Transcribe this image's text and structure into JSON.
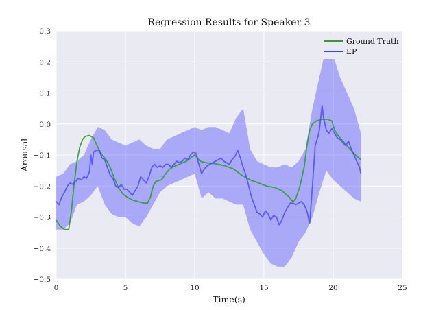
{
  "chart_data": {
    "type": "line",
    "title": "Regression Results for Speaker 3",
    "xlabel": "Time(s)",
    "ylabel": "Arousal",
    "xlim": [
      0,
      25
    ],
    "ylim": [
      -0.5,
      0.3
    ],
    "xticks": [
      0,
      5,
      10,
      15,
      20,
      25
    ],
    "xtick_labels": [
      "0",
      "5",
      "10",
      "15",
      "20",
      "25"
    ],
    "yticks": [
      -0.5,
      -0.4,
      -0.3,
      -0.2,
      -0.1,
      0.0,
      0.1,
      0.2,
      0.3
    ],
    "ytick_labels": [
      "−0.5",
      "−0.4",
      "−0.3",
      "−0.2",
      "−0.1",
      "0.0",
      "0.1",
      "0.2",
      "0.3"
    ],
    "grid": true,
    "legend_position": "top-right",
    "series": [
      {
        "name": "Ground Truth",
        "color": "#2ca02c",
        "points": [
          [
            0,
            -0.31
          ],
          [
            0.3,
            -0.33
          ],
          [
            0.6,
            -0.34
          ],
          [
            0.9,
            -0.34
          ],
          [
            1.1,
            -0.28
          ],
          [
            1.3,
            -0.19
          ],
          [
            1.5,
            -0.12
          ],
          [
            1.7,
            -0.075
          ],
          [
            1.9,
            -0.05
          ],
          [
            2.1,
            -0.04
          ],
          [
            2.4,
            -0.037
          ],
          [
            2.7,
            -0.045
          ],
          [
            3.0,
            -0.075
          ],
          [
            3.3,
            -0.1
          ],
          [
            3.6,
            -0.115
          ],
          [
            3.9,
            -0.14
          ],
          [
            4.2,
            -0.175
          ],
          [
            4.5,
            -0.205
          ],
          [
            4.8,
            -0.225
          ],
          [
            5.1,
            -0.235
          ],
          [
            5.5,
            -0.245
          ],
          [
            5.9,
            -0.25
          ],
          [
            6.3,
            -0.255
          ],
          [
            6.6,
            -0.255
          ],
          [
            6.8,
            -0.235
          ],
          [
            7.0,
            -0.2
          ],
          [
            7.2,
            -0.185
          ],
          [
            7.6,
            -0.18
          ],
          [
            7.9,
            -0.16
          ],
          [
            8.2,
            -0.145
          ],
          [
            8.6,
            -0.135
          ],
          [
            9.0,
            -0.128
          ],
          [
            9.4,
            -0.12
          ],
          [
            9.7,
            -0.11
          ],
          [
            10.0,
            -0.1
          ],
          [
            10.2,
            -0.11
          ],
          [
            10.4,
            -0.12
          ],
          [
            10.8,
            -0.125
          ],
          [
            11.5,
            -0.128
          ],
          [
            12.2,
            -0.135
          ],
          [
            12.8,
            -0.145
          ],
          [
            13.4,
            -0.165
          ],
          [
            14.0,
            -0.18
          ],
          [
            14.6,
            -0.19
          ],
          [
            15.2,
            -0.2
          ],
          [
            15.8,
            -0.205
          ],
          [
            16.3,
            -0.215
          ],
          [
            16.8,
            -0.235
          ],
          [
            17.1,
            -0.25
          ],
          [
            17.3,
            -0.24
          ],
          [
            17.6,
            -0.2
          ],
          [
            17.9,
            -0.14
          ],
          [
            18.1,
            -0.07
          ],
          [
            18.3,
            -0.02
          ],
          [
            18.5,
            0.0
          ],
          [
            18.8,
            0.01
          ],
          [
            19.2,
            0.015
          ],
          [
            19.6,
            0.015
          ],
          [
            19.9,
            0.01
          ],
          [
            20.1,
            -0.02
          ],
          [
            20.4,
            -0.04
          ],
          [
            20.8,
            -0.06
          ],
          [
            21.2,
            -0.08
          ],
          [
            21.6,
            -0.1
          ],
          [
            22.0,
            -0.115
          ]
        ]
      },
      {
        "name": "EP",
        "color": "#4040ff",
        "points": [
          [
            0,
            -0.25
          ],
          [
            0.2,
            -0.26
          ],
          [
            0.4,
            -0.235
          ],
          [
            0.6,
            -0.22
          ],
          [
            0.8,
            -0.2
          ],
          [
            1.0,
            -0.19
          ],
          [
            1.2,
            -0.195
          ],
          [
            1.4,
            -0.185
          ],
          [
            1.6,
            -0.175
          ],
          [
            1.8,
            -0.18
          ],
          [
            2.0,
            -0.17
          ],
          [
            2.2,
            -0.175
          ],
          [
            2.4,
            -0.155
          ],
          [
            2.5,
            -0.1
          ],
          [
            2.6,
            -0.13
          ],
          [
            2.7,
            -0.09
          ],
          [
            2.9,
            -0.085
          ],
          [
            3.1,
            -0.085
          ],
          [
            3.3,
            -0.11
          ],
          [
            3.5,
            -0.115
          ],
          [
            3.7,
            -0.14
          ],
          [
            3.9,
            -0.165
          ],
          [
            4.1,
            -0.175
          ],
          [
            4.3,
            -0.2
          ],
          [
            4.5,
            -0.205
          ],
          [
            4.7,
            -0.195
          ],
          [
            4.9,
            -0.21
          ],
          [
            5.1,
            -0.21
          ],
          [
            5.3,
            -0.22
          ],
          [
            5.5,
            -0.23
          ],
          [
            5.7,
            -0.215
          ],
          [
            5.9,
            -0.2
          ],
          [
            6.1,
            -0.17
          ],
          [
            6.3,
            -0.18
          ],
          [
            6.5,
            -0.19
          ],
          [
            6.7,
            -0.17
          ],
          [
            6.9,
            -0.14
          ],
          [
            7.1,
            -0.13
          ],
          [
            7.3,
            -0.14
          ],
          [
            7.5,
            -0.135
          ],
          [
            7.7,
            -0.14
          ],
          [
            7.9,
            -0.13
          ],
          [
            8.1,
            -0.13
          ],
          [
            8.3,
            -0.14
          ],
          [
            8.5,
            -0.13
          ],
          [
            8.7,
            -0.12
          ],
          [
            8.9,
            -0.125
          ],
          [
            9.1,
            -0.12
          ],
          [
            9.3,
            -0.11
          ],
          [
            9.5,
            -0.115
          ],
          [
            9.7,
            -0.1
          ],
          [
            9.9,
            -0.09
          ],
          [
            10.1,
            -0.095
          ],
          [
            10.3,
            -0.13
          ],
          [
            10.5,
            -0.16
          ],
          [
            10.7,
            -0.145
          ],
          [
            10.9,
            -0.135
          ],
          [
            11.1,
            -0.13
          ],
          [
            11.3,
            -0.125
          ],
          [
            11.5,
            -0.12
          ],
          [
            11.7,
            -0.115
          ],
          [
            11.9,
            -0.11
          ],
          [
            12.1,
            -0.12
          ],
          [
            12.3,
            -0.125
          ],
          [
            12.5,
            -0.13
          ],
          [
            12.7,
            -0.115
          ],
          [
            12.9,
            -0.105
          ],
          [
            13.1,
            -0.085
          ],
          [
            13.3,
            -0.11
          ],
          [
            13.5,
            -0.14
          ],
          [
            13.7,
            -0.165
          ],
          [
            13.9,
            -0.2
          ],
          [
            14.1,
            -0.235
          ],
          [
            14.3,
            -0.26
          ],
          [
            14.5,
            -0.285
          ],
          [
            14.7,
            -0.29
          ],
          [
            14.9,
            -0.3
          ],
          [
            15.1,
            -0.28
          ],
          [
            15.3,
            -0.29
          ],
          [
            15.5,
            -0.31
          ],
          [
            15.7,
            -0.295
          ],
          [
            15.9,
            -0.3
          ],
          [
            16.1,
            -0.325
          ],
          [
            16.3,
            -0.31
          ],
          [
            16.5,
            -0.285
          ],
          [
            16.7,
            -0.27
          ],
          [
            16.9,
            -0.255
          ],
          [
            17.1,
            -0.255
          ],
          [
            17.3,
            -0.26
          ],
          [
            17.5,
            -0.255
          ],
          [
            17.7,
            -0.25
          ],
          [
            17.9,
            -0.26
          ],
          [
            18.1,
            -0.28
          ],
          [
            18.3,
            -0.32
          ],
          [
            18.5,
            -0.2
          ],
          [
            18.7,
            -0.07
          ],
          [
            18.9,
            -0.04
          ],
          [
            19.0,
            -0.02
          ],
          [
            19.2,
            0.06
          ],
          [
            19.3,
            0.02
          ],
          [
            19.5,
            -0.02
          ],
          [
            19.7,
            -0.03
          ],
          [
            19.9,
            -0.015
          ],
          [
            20.1,
            -0.03
          ],
          [
            20.3,
            -0.045
          ],
          [
            20.5,
            -0.05
          ],
          [
            20.7,
            -0.06
          ],
          [
            20.9,
            -0.07
          ],
          [
            21.1,
            -0.055
          ],
          [
            21.3,
            -0.08
          ],
          [
            21.5,
            -0.1
          ],
          [
            21.7,
            -0.12
          ],
          [
            21.9,
            -0.14
          ],
          [
            22.0,
            -0.16
          ]
        ],
        "band": {
          "x": [
            0,
            0.5,
            1.0,
            1.5,
            2.0,
            2.5,
            3.0,
            3.5,
            4.0,
            4.5,
            5.0,
            5.5,
            6.0,
            6.5,
            7.0,
            7.5,
            8.0,
            8.5,
            9.0,
            9.5,
            10.0,
            10.5,
            11.0,
            11.5,
            12.0,
            12.5,
            13.0,
            13.5,
            14.0,
            14.5,
            15.0,
            15.5,
            16.0,
            16.5,
            17.0,
            17.5,
            18.0,
            18.5,
            19.0,
            19.5,
            20.0,
            20.5,
            21.0,
            21.5,
            22.0
          ],
          "upper": [
            -0.17,
            -0.16,
            -0.13,
            -0.12,
            -0.1,
            -0.05,
            -0.01,
            -0.02,
            -0.05,
            -0.06,
            -0.07,
            -0.06,
            -0.05,
            -0.07,
            -0.08,
            -0.08,
            -0.05,
            -0.04,
            -0.03,
            -0.02,
            -0.01,
            -0.02,
            -0.01,
            -0.01,
            -0.02,
            -0.03,
            0.02,
            0.05,
            -0.08,
            -0.12,
            -0.13,
            -0.14,
            -0.14,
            -0.13,
            -0.14,
            -0.12,
            -0.08,
            0.05,
            0.15,
            0.25,
            0.22,
            0.15,
            0.1,
            0.05,
            -0.03
          ],
          "lower": [
            -0.34,
            -0.34,
            -0.32,
            -0.26,
            -0.25,
            -0.23,
            -0.2,
            -0.26,
            -0.29,
            -0.3,
            -0.3,
            -0.32,
            -0.33,
            -0.3,
            -0.26,
            -0.22,
            -0.2,
            -0.19,
            -0.18,
            -0.17,
            -0.16,
            -0.24,
            -0.22,
            -0.24,
            -0.24,
            -0.25,
            -0.26,
            -0.26,
            -0.34,
            -0.38,
            -0.42,
            -0.45,
            -0.46,
            -0.46,
            -0.43,
            -0.38,
            -0.35,
            -0.3,
            -0.22,
            -0.15,
            -0.18,
            -0.2,
            -0.22,
            -0.24,
            -0.25
          ]
        }
      }
    ]
  }
}
